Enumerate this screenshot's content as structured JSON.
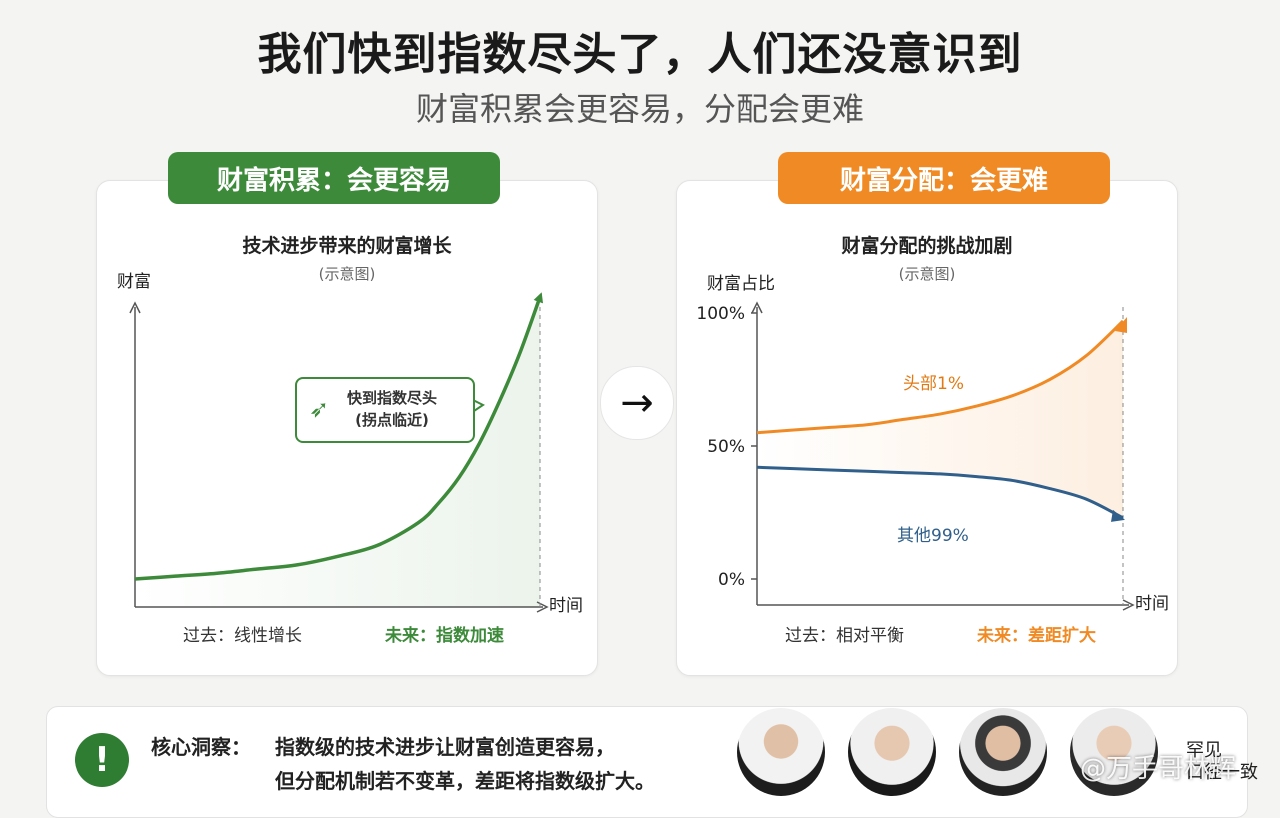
{
  "header": {
    "title": "我们快到指数尽头了，人们还没意识到",
    "subtitle": "财富积累会更容易，分配会更难"
  },
  "left_panel": {
    "badge": "财富积累：会更容易",
    "chart_title": "技术进步带来的财富增长",
    "chart_subtitle": "(示意图)",
    "callout_line1": "快到指数尽头",
    "callout_line2": "(拐点临近)",
    "footer_past": "过去：线性增长",
    "footer_future": "未来：指数加速"
  },
  "right_panel": {
    "badge": "财富分配：会更难",
    "chart_title": "财富分配的挑战加剧",
    "chart_subtitle": "(示意图)",
    "footer_past": "过去：相对平衡",
    "footer_future": "未来：差距扩大"
  },
  "transition_arrow": "→",
  "insight": {
    "icon": "!",
    "label": "核心洞察：",
    "line1": "指数级的技术进步让财富创造更容易，",
    "line2": "但分配机制若不变革，差距将指数级扩大。"
  },
  "side_note": [
    "罕见",
    "口径一致"
  ],
  "watermark": "@万手哥林辉",
  "colors": {
    "green": "#3c8a3a",
    "orange": "#f08a24",
    "blue": "#2f5f8a"
  },
  "chart_data": [
    {
      "type": "line",
      "title": "技术进步带来的财富增长",
      "subtitle": "(示意图)",
      "ylabel": "财富",
      "xlabel": "时间",
      "x": [
        0,
        0.1,
        0.2,
        0.3,
        0.4,
        0.5,
        0.6,
        0.7,
        0.75,
        0.8,
        0.85,
        0.9,
        0.95,
        1.0
      ],
      "series": [
        {
          "values": [
            0.0,
            0.01,
            0.02,
            0.035,
            0.05,
            0.08,
            0.12,
            0.2,
            0.27,
            0.36,
            0.48,
            0.63,
            0.8,
            1.0
          ]
        }
      ],
      "grid": false
    },
    {
      "type": "line",
      "title": "财富分配的挑战加剧",
      "subtitle": "(示意图)",
      "ylabel": "财富占比",
      "xlabel": "时间",
      "yticks": [
        "0%",
        "50%",
        "100%"
      ],
      "ylim": [
        0,
        100
      ],
      "x": [
        0,
        0.1,
        0.2,
        0.3,
        0.4,
        0.5,
        0.6,
        0.7,
        0.8,
        0.9,
        1.0
      ],
      "series": [
        {
          "name": "头部1%",
          "values": [
            55,
            56,
            57,
            58,
            60,
            62,
            65,
            69,
            75,
            84,
            97
          ]
        },
        {
          "name": "其他99%",
          "values": [
            42,
            41.5,
            41,
            40.5,
            40,
            39.5,
            38.5,
            37,
            34,
            30,
            23
          ]
        }
      ],
      "grid": false
    }
  ]
}
